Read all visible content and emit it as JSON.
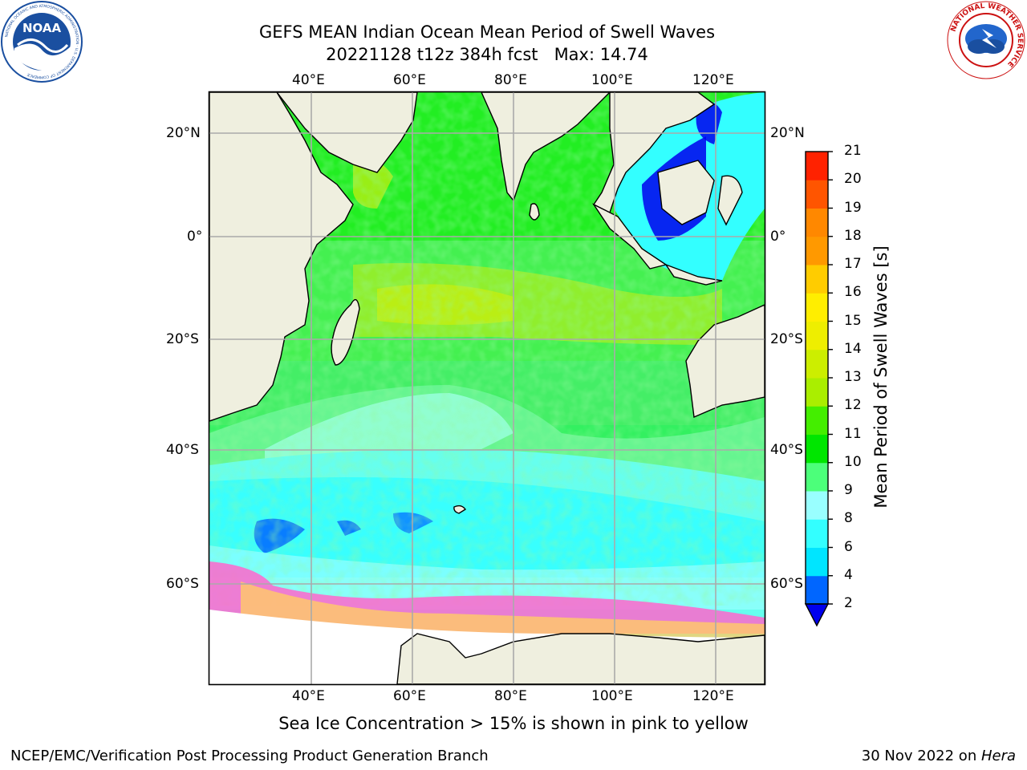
{
  "title": {
    "line1": "GEFS MEAN Indian Ocean Mean Period of Swell Waves",
    "line2": "20221128 t12z 384h fcst   Max: 14.74"
  },
  "logos": {
    "noaa": {
      "text": "NOAA",
      "ring_text": "NATIONAL OCEANIC AND ATMOSPHERIC ADMINISTRATION · U.S. DEPARTMENT OF COMMERCE"
    },
    "nws": {
      "ring_text": "NATIONAL WEATHER SERVICE"
    }
  },
  "axes": {
    "lon_labels": [
      "40°E",
      "60°E",
      "80°E",
      "100°E",
      "120°E"
    ],
    "lat_labels": [
      "20°N",
      "0°",
      "20°S",
      "40°S",
      "60°S"
    ]
  },
  "colorbar": {
    "label": "Mean Period of Swell Waves [s]",
    "ticks": [
      "2",
      "4",
      "6",
      "8",
      "9",
      "10",
      "11",
      "12",
      "13",
      "14",
      "15",
      "16",
      "17",
      "18",
      "19",
      "20",
      "21"
    ],
    "colors": [
      "#0066ff",
      "#00e5ff",
      "#33ffff",
      "#99ffff",
      "#4cff7a",
      "#00e600",
      "#44ee00",
      "#aaee00",
      "#ccee00",
      "#eeee00",
      "#ffee00",
      "#ffcc00",
      "#ff9900",
      "#ff8800",
      "#ff5500",
      "#ff2200"
    ],
    "underflow_color": "#0000ee"
  },
  "caption": "Sea Ice Concentration > 15% is shown in pink to yellow",
  "footer": {
    "left": "NCEP/EMC/Verification Post Processing Product Generation Branch",
    "date": "30 Nov 2022 on ",
    "machine": "Hera"
  }
}
